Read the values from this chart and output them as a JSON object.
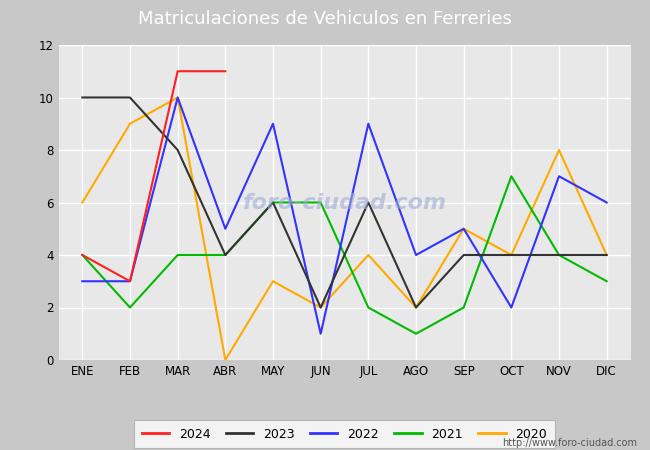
{
  "title": "Matriculaciones de Vehiculos en Ferreries",
  "months": [
    "ENE",
    "FEB",
    "MAR",
    "ABR",
    "MAY",
    "JUN",
    "JUL",
    "AGO",
    "SEP",
    "OCT",
    "NOV",
    "DIC"
  ],
  "months_data": {
    "2024": [
      4,
      3,
      11,
      11,
      null,
      null,
      null,
      null,
      null,
      null,
      null,
      null
    ],
    "2023": [
      10,
      10,
      8,
      4,
      6,
      2,
      6,
      2,
      4,
      4,
      4,
      4
    ],
    "2022": [
      3,
      3,
      10,
      5,
      9,
      1,
      9,
      4,
      5,
      2,
      7,
      6
    ],
    "2021": [
      4,
      2,
      4,
      4,
      6,
      6,
      2,
      1,
      2,
      7,
      4,
      3
    ],
    "2020": [
      6,
      9,
      10,
      0,
      3,
      2,
      4,
      2,
      5,
      4,
      8,
      4
    ]
  },
  "colors": {
    "2024": "#ff2020",
    "2023": "#333333",
    "2022": "#3333ff",
    "2021": "#00bb00",
    "2020": "#ffaa00"
  },
  "legend_years": [
    "2024",
    "2023",
    "2022",
    "2021",
    "2020"
  ],
  "ylim": [
    0,
    12
  ],
  "yticks": [
    0,
    2,
    4,
    6,
    8,
    10,
    12
  ],
  "title_bg": "#4472c4",
  "title_fg": "#ffffff",
  "fig_bg": "#c8c8c8",
  "plot_bg": "#e8e8e8",
  "grid_color": "#ffffff",
  "url": "http://www.foro-ciudad.com",
  "watermark": "foro-ciudad.com",
  "title_fontsize": 13,
  "tick_fontsize": 8.5,
  "line_width": 1.5
}
